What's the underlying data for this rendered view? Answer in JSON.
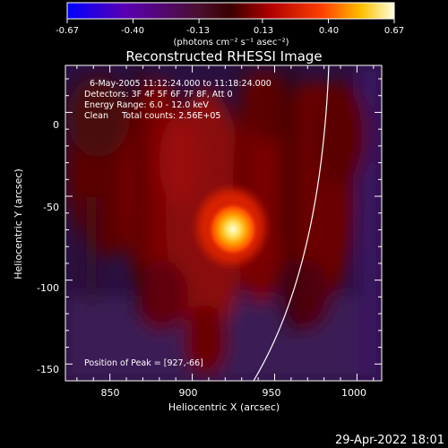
{
  "chart_data": {
    "type": "heatmap",
    "title": "Reconstructed RHESSI Image",
    "xlabel": "Heliocentric X (arcsec)",
    "ylabel": "Heliocentric Y (arcsec)",
    "xlim": [
      823,
      1015
    ],
    "ylim": [
      -160,
      28
    ],
    "xticks": [
      850,
      900,
      950,
      1000
    ],
    "yticks": [
      0,
      -50,
      -100,
      -150
    ],
    "colorbar": {
      "ticks": [
        "-0.67",
        "-0.40",
        "-0.13",
        "0.13",
        "0.40",
        "0.67"
      ],
      "label": "(photons cm⁻² s⁻¹ asec⁻²)",
      "range": [
        -0.67,
        0.67
      ]
    },
    "annotations": [
      "6-May-2005 11:12:24.000 to 11:18:24.000",
      "Detectors: 3F 4F 5F 6F 7F 8F, Att 0",
      "Energy Range: 6.0 - 12.0 keV",
      "Clean     Total counts: 2.56E+05"
    ],
    "peak_label": "Position of Peak = [927,-66]",
    "peak": {
      "x": 927,
      "y": -66,
      "value": 0.67
    },
    "limb_color": "#ffffff",
    "timestamp": "29-Apr-2022 18:01"
  }
}
